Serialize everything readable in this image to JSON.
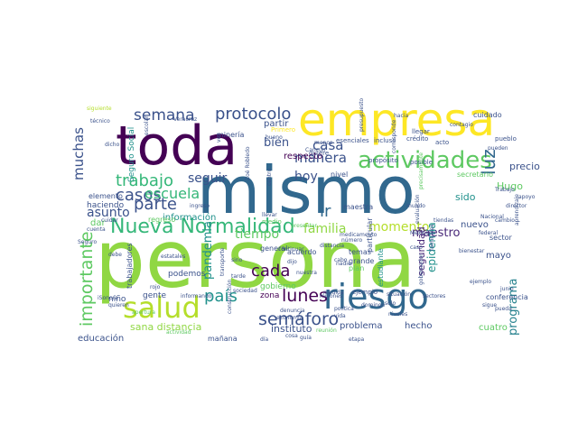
{
  "colors": {
    "background": "#ffffff",
    "palette": [
      "#440154",
      "#3b528b",
      "#21918c",
      "#5ec962",
      "#fde725",
      "#31688e",
      "#35b779",
      "#90d743",
      "#482878",
      "#26828e",
      "#b5de2b"
    ]
  },
  "words": [
    {
      "text": "persona",
      "color": "#90d743"
    },
    {
      "text": "mismo",
      "color": "#31688e"
    },
    {
      "text": "toda",
      "color": "#440154"
    },
    {
      "text": "empresa",
      "color": "#fde725"
    },
    {
      "text": "riesgo",
      "color": "#31688e"
    },
    {
      "text": "salud",
      "color": "#b5de2b"
    },
    {
      "text": "actividades",
      "color": "#5ec962"
    },
    {
      "text": "Nueva Normalidad",
      "color": "#35b779"
    },
    {
      "text": "semáforo",
      "color": "#3b528b"
    },
    {
      "text": "importante",
      "color": "#5ec962"
    },
    {
      "text": "lunes",
      "color": "#440154"
    },
    {
      "text": "protocolo",
      "color": "#3b528b"
    },
    {
      "text": "casos",
      "color": "#3b528b"
    },
    {
      "text": "trabajo",
      "color": "#35b779"
    },
    {
      "text": "semana",
      "color": "#3b528b"
    },
    {
      "text": "parte",
      "color": "#3b528b"
    },
    {
      "text": "cada",
      "color": "#440154"
    },
    {
      "text": "país",
      "color": "#21918c"
    },
    {
      "text": "escuela",
      "color": "#35b779"
    },
    {
      "text": "muchas",
      "color": "#3b528b"
    },
    {
      "text": "pandemia",
      "color": "#21918c"
    },
    {
      "text": "programa",
      "color": "#26828e"
    },
    {
      "text": "manera",
      "color": "#3b528b"
    },
    {
      "text": "casa",
      "color": "#3b528b"
    },
    {
      "text": "familia",
      "color": "#90d743"
    },
    {
      "text": "momento",
      "color": "#b5de2b"
    },
    {
      "text": "luz",
      "color": "#31688e"
    },
    {
      "text": "maestro",
      "color": "#482878"
    },
    {
      "text": "ir",
      "color": "#31688e"
    },
    {
      "text": "hoy",
      "color": "#3b528b"
    },
    {
      "text": "seguir",
      "color": "#3b528b"
    },
    {
      "text": "asunto",
      "color": "#3b528b"
    },
    {
      "text": "tiempo",
      "color": "#5ec962"
    },
    {
      "text": "bien",
      "color": "#3b528b"
    },
    {
      "text": "epidemia",
      "color": "#21918c"
    },
    {
      "text": "instituto",
      "color": "#3b528b"
    },
    {
      "text": "sana distancia",
      "color": "#90d743"
    },
    {
      "text": "seguridad",
      "color": "#482878"
    },
    {
      "text": "precio",
      "color": "#3b528b"
    },
    {
      "text": "Hugo",
      "color": "#5ec962"
    },
    {
      "text": "sido",
      "color": "#21918c"
    },
    {
      "text": "información",
      "color": "#21918c"
    },
    {
      "text": "partir",
      "color": "#3b528b"
    },
    {
      "text": "respecto",
      "color": "#440154"
    },
    {
      "text": "cuatro",
      "color": "#5ec962"
    },
    {
      "text": "nuevo",
      "color": "#3b528b"
    },
    {
      "text": "mayo",
      "color": "#3b528b"
    },
    {
      "text": "problema",
      "color": "#3b528b"
    },
    {
      "text": "hecho",
      "color": "#3b528b"
    },
    {
      "text": "educación",
      "color": "#3b528b"
    },
    {
      "text": "niño",
      "color": "#3b528b"
    },
    {
      "text": "gente",
      "color": "#3b528b"
    },
    {
      "text": "gobierno",
      "color": "#5ec962"
    },
    {
      "text": "zona",
      "color": "#440154"
    },
    {
      "text": "mañana",
      "color": "#3b528b"
    },
    {
      "text": "podemos",
      "color": "#3b528b"
    },
    {
      "text": "dar",
      "color": "#5ec962"
    },
    {
      "text": "haciendo",
      "color": "#3b528b"
    },
    {
      "text": "elemento",
      "color": "#3b528b"
    },
    {
      "text": "Seguro Social",
      "color": "#21918c"
    },
    {
      "text": "regreso",
      "color": "#5ec962"
    },
    {
      "text": "sector",
      "color": "#3b528b"
    },
    {
      "text": "conferencia",
      "color": "#3b528b"
    },
    {
      "text": "trabajadores",
      "color": "#3b528b"
    },
    {
      "text": "cuidado",
      "color": "#3b528b"
    },
    {
      "text": "minería",
      "color": "#3b528b"
    },
    {
      "text": "acuerdo",
      "color": "#3b528b"
    },
    {
      "text": "general",
      "color": "#3b528b"
    },
    {
      "text": "maestra",
      "color": "#3b528b"
    },
    {
      "text": "particular",
      "color": "#3b528b"
    },
    {
      "text": "estudiante",
      "color": "#21918c"
    },
    {
      "text": "temas",
      "color": "#3b528b"
    },
    {
      "text": "grande",
      "color": "#3b528b"
    },
    {
      "text": "nivel",
      "color": "#3b528b"
    },
    {
      "text": "plan",
      "color": "#5ec962"
    },
    {
      "text": "quiere",
      "color": "#3b528b"
    },
    {
      "text": "incluso",
      "color": "#3b528b"
    },
    {
      "text": "crédito",
      "color": "#3b528b"
    },
    {
      "text": "esenciales",
      "color": "#3b528b"
    },
    {
      "text": "llegar",
      "color": "#3b528b"
    },
    {
      "text": "acto",
      "color": "#3b528b"
    },
    {
      "text": "pueblo",
      "color": "#3b528b"
    },
    {
      "text": "secretario",
      "color": "#5ec962"
    },
    {
      "text": "siguiente",
      "color": "#b5de2b"
    },
    {
      "text": "Primero",
      "color": "#fde725"
    },
    {
      "text": "propósito",
      "color": "#3b528b"
    },
    {
      "text": "posible",
      "color": "#3b528b"
    },
    {
      "text": "federal",
      "color": "#3b528b"
    },
    {
      "text": "Nacional",
      "color": "#3b528b"
    },
    {
      "text": "bienestar",
      "color": "#3b528b"
    },
    {
      "text": "situación",
      "color": "#3b528b"
    },
    {
      "text": "sectores",
      "color": "#3b528b"
    },
    {
      "text": "sociedad",
      "color": "#3b528b"
    },
    {
      "text": "distancia",
      "color": "#3b528b"
    },
    {
      "text": "director",
      "color": "#3b528b"
    },
    {
      "text": "sólo",
      "color": "#3b528b"
    },
    {
      "text": "debe",
      "color": "#3b528b"
    },
    {
      "text": "tarde",
      "color": "#3b528b"
    },
    {
      "text": "cuenta",
      "color": "#3b528b"
    },
    {
      "text": "llevar",
      "color": "#3b528b"
    },
    {
      "text": "Cancún",
      "color": "#3b528b"
    },
    {
      "text": "dicho",
      "color": "#3b528b"
    },
    {
      "text": "contagio",
      "color": "#3b528b"
    },
    {
      "text": "iSonora",
      "color": "#3b528b"
    },
    {
      "text": "Zoé Robledo",
      "color": "#3b528b"
    },
    {
      "text": "medicamento",
      "color": "#3b528b"
    },
    {
      "text": "medio",
      "color": "#5ec962"
    },
    {
      "text": "transporte",
      "color": "#3b528b"
    },
    {
      "text": "construcción",
      "color": "#3b528b"
    },
    {
      "text": "denuncia",
      "color": "#3b528b"
    },
    {
      "text": "continuar",
      "color": "#3b528b"
    },
    {
      "text": "millones",
      "color": "#3b528b"
    },
    {
      "text": "política",
      "color": "#3b528b"
    },
    {
      "text": "ejemplo",
      "color": "#3b528b"
    },
    {
      "text": "niveles",
      "color": "#3b528b"
    },
    {
      "text": "reunión",
      "color": "#5ec962"
    },
    {
      "text": "domingo",
      "color": "#3b528b"
    },
    {
      "text": "informando",
      "color": "#3b528b"
    },
    {
      "text": "quieren",
      "color": "#3b528b"
    },
    {
      "text": "apertura",
      "color": "#5ec962"
    },
    {
      "text": "escolar",
      "color": "#3b528b"
    },
    {
      "text": "ingreso",
      "color": "#3b528b"
    },
    {
      "text": "técnico",
      "color": "#3b528b"
    },
    {
      "text": "evaluación",
      "color": "#3b528b"
    },
    {
      "text": "número",
      "color": "#3b528b"
    },
    {
      "text": "cambio",
      "color": "#3b528b"
    },
    {
      "text": "tiendas",
      "color": "#3b528b"
    },
    {
      "text": "gobernador",
      "color": "#3b528b"
    },
    {
      "text": "nadie",
      "color": "#3b528b"
    },
    {
      "text": "rojo",
      "color": "#3b528b"
    },
    {
      "text": "medida",
      "color": "#3b528b"
    },
    {
      "text": "centro",
      "color": "#3b528b"
    },
    {
      "text": "pueden",
      "color": "#3b528b"
    },
    {
      "text": "familiares",
      "color": "#3b528b"
    },
    {
      "text": "apoyo",
      "color": "#3b528b"
    },
    {
      "text": "economía",
      "color": "#3b528b"
    },
    {
      "text": "precisamente",
      "color": "#5ec962"
    },
    {
      "text": "aprendizaje",
      "color": "#3b528b"
    },
    {
      "text": "mundo",
      "color": "#3b528b"
    },
    {
      "text": "cosa",
      "color": "#3b528b"
    },
    {
      "text": "vez",
      "color": "#3b528b"
    },
    {
      "text": "dijo",
      "color": "#3b528b"
    },
    {
      "text": "menos",
      "color": "#3b528b"
    },
    {
      "text": "presentar",
      "color": "#5ec962"
    },
    {
      "text": "cabo",
      "color": "#3b528b"
    },
    {
      "text": "junio",
      "color": "#3b528b"
    },
    {
      "text": "hacia",
      "color": "#3b528b"
    },
    {
      "text": "nuestra",
      "color": "#3b528b"
    },
    {
      "text": "Veracruz",
      "color": "#3b528b"
    },
    {
      "text": "ejemplo",
      "color": "#3b528b"
    },
    {
      "text": "estatales",
      "color": "#3b528b"
    },
    {
      "text": "Seguro",
      "color": "#3b528b"
    },
    {
      "text": "corresponde",
      "color": "#3b528b"
    },
    {
      "text": "presupuesto",
      "color": "#3b528b"
    },
    {
      "text": "vida",
      "color": "#3b528b"
    },
    {
      "text": "bueno",
      "color": "#3b528b"
    },
    {
      "text": "actividad",
      "color": "#5ec962"
    },
    {
      "text": "Trabajo",
      "color": "#3b528b"
    },
    {
      "text": "Mexicano",
      "color": "#3b528b"
    },
    {
      "text": "cuidar",
      "color": "#3b528b"
    },
    {
      "text": "sigue",
      "color": "#3b528b"
    },
    {
      "text": "sino",
      "color": "#3b528b"
    },
    {
      "text": "día",
      "color": "#3b528b"
    },
    {
      "text": "pueda",
      "color": "#3b528b"
    },
    {
      "text": "guía",
      "color": "#3b528b"
    },
    {
      "text": "etapa",
      "color": "#3b528b"
    },
    {
      "text": "caso",
      "color": "#3b528b"
    }
  ]
}
